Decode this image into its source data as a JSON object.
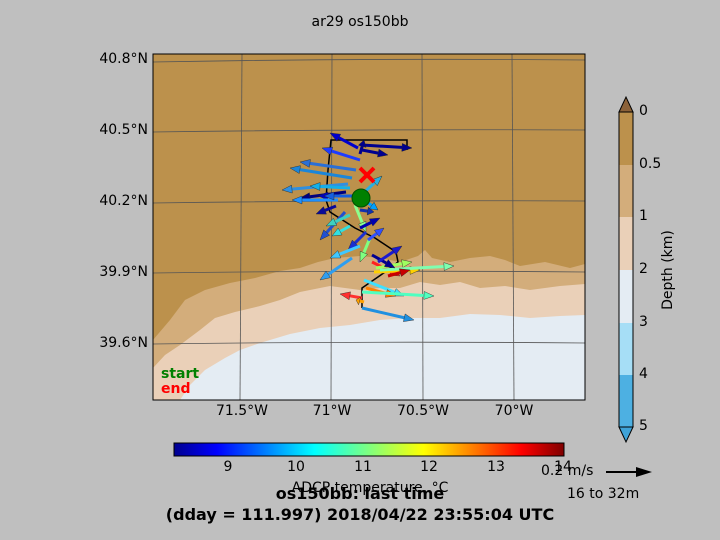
{
  "title": "ar29 os150bb",
  "map": {
    "lat_labels": [
      "40.8°N",
      "40.5°N",
      "40.2°N",
      "39.9°N",
      "39.6°N"
    ],
    "lon_labels": [
      "71.5°W",
      "71°W",
      "70.5°W",
      "70°W"
    ],
    "start_label": "start",
    "end_label": "end",
    "start_color": "#008000",
    "end_color": "#ff0000",
    "track_color": "#000000",
    "land_color": "#bc914c",
    "shelf_color": "#d3ad7b",
    "shelf2_color": "#ead0b8",
    "deep_color": "#e4ecf3"
  },
  "depth_colorbar": {
    "title": "Depth (km)",
    "ticks": [
      "0",
      "0.5",
      "1",
      "2",
      "3",
      "4",
      "5"
    ],
    "colors": [
      "#4db0e2",
      "#a6def6",
      "#e4ecf3",
      "#ead0b8",
      "#d3ad7b",
      "#bc914c",
      "#8c6239"
    ]
  },
  "temp_colorbar": {
    "label": "ADCP temperature, °C",
    "ticks": [
      "9",
      "10",
      "11",
      "12",
      "13",
      "14"
    ],
    "colormap": "jet"
  },
  "arrow_scale": "0.2 m/s",
  "depth_range": "16 to 32m",
  "main_title": "os150bb: last time",
  "sub_title": "(dday = 111.997) 2018/04/22 23:55:04 UTC"
}
